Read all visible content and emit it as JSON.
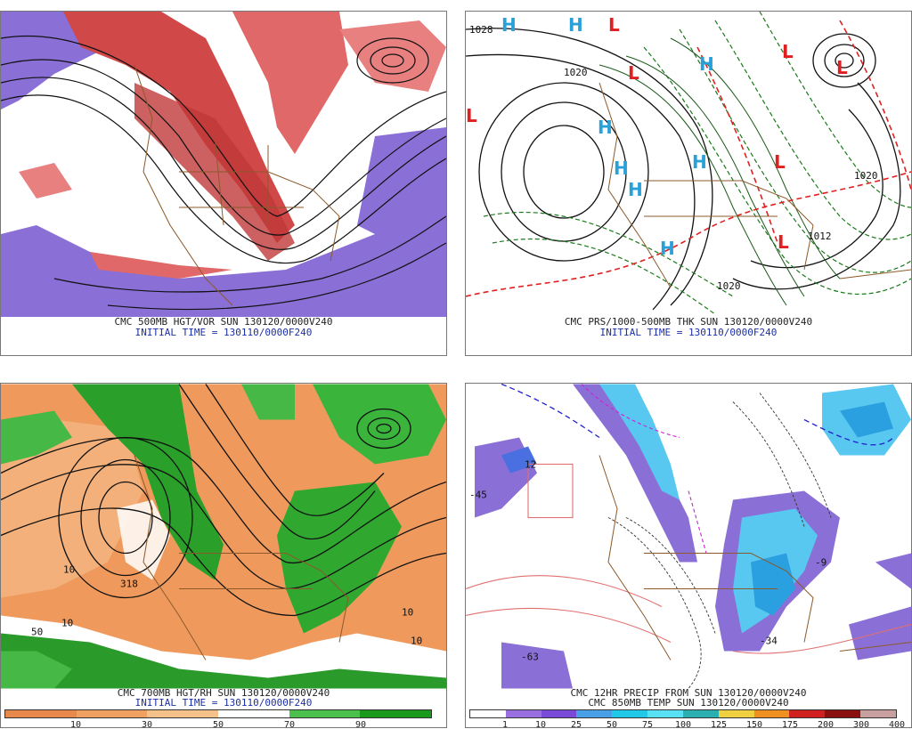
{
  "panels": [
    {
      "caption_line1": "CMC 500MB HGT/VOR SUN 130120/0000V240",
      "caption_line2": "INITIAL TIME = 130110/0000F240"
    },
    {
      "caption_line1": "CMC PRS/1000-500MB THK SUN 130120/0000V240",
      "caption_line2": "INITIAL TIME = 130110/0000F240",
      "contour_labels": [
        "1028",
        "1020",
        "1020",
        "1012",
        "1020"
      ]
    },
    {
      "caption_line1": "CMC 700MB HGT/RH SUN 130120/0000V240",
      "caption_line2": "INITIAL TIME = 130110/0000F240",
      "legend_ticks": [
        "10",
        "30",
        "50",
        "70",
        "90"
      ],
      "legend_colors": [
        "#e8894c",
        "#f0a060",
        "#f6c28c",
        "#ffffff",
        "#4cc04c",
        "#1a9a1a"
      ],
      "map_labels": [
        "10",
        "318",
        "10",
        "50",
        "10",
        "10"
      ]
    },
    {
      "caption_line1": "CMC 12HR PRECIP FROM SUN 130120/0000V240",
      "caption_line2": "CMC 850MB TEMP SUN 130120/0000V240",
      "legend_ticks": [
        "1",
        "10",
        "25",
        "50",
        "75",
        "100",
        "125",
        "150",
        "175",
        "200",
        "300",
        "400"
      ],
      "legend_colors": [
        "#ffffff",
        "#9a6fe0",
        "#7a4ad8",
        "#4aa0e6",
        "#22c8e8",
        "#58e0f4",
        "#2ab0b0",
        "#f0d040",
        "#f09020",
        "#d02020",
        "#8a1010",
        "#c8a0a0"
      ],
      "map_labels": [
        "-63",
        "-34",
        "12",
        "-9",
        "-45"
      ]
    }
  ],
  "symbols": {
    "high": "H",
    "low": "L"
  }
}
